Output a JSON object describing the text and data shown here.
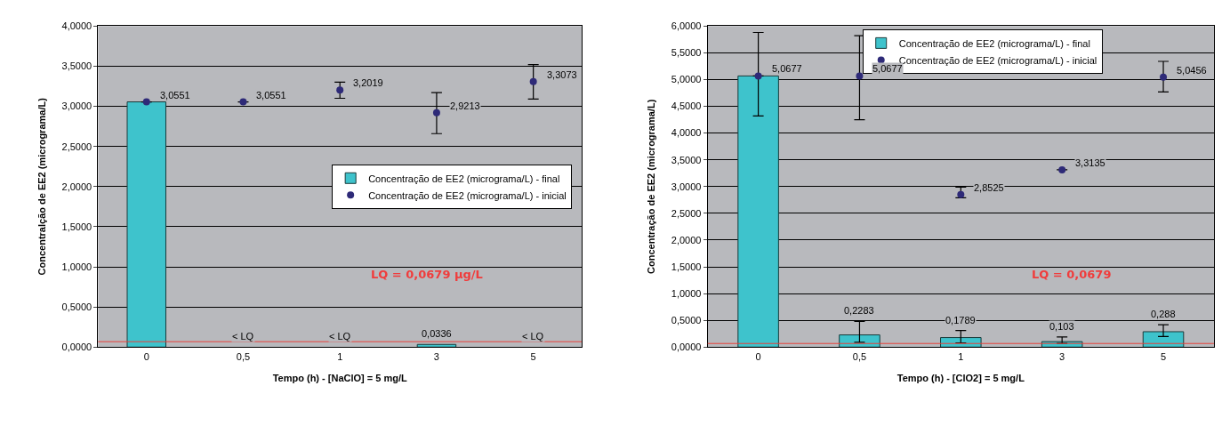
{
  "chart_data": [
    {
      "type": "bar",
      "xlabel": "Tempo (h) - [NaClO] = 5 mg/L",
      "ylabel": "Concentralção de EE2 (micrograma/L)",
      "categories": [
        "0",
        "0,5",
        "1",
        "3",
        "5"
      ],
      "series": [
        {
          "name": "Concentração de EE2 (micrograma/L) - final",
          "color": "#3ec3cc",
          "values": [
            3.0551,
            null,
            null,
            0.0336,
            null
          ],
          "value_labels": [
            null,
            "< LQ",
            "< LQ",
            "0,0336",
            "< LQ"
          ]
        },
        {
          "name": "Concentração de EE2 (micrograma/L) - inicial",
          "type": "scatter",
          "color": "#2e2a78",
          "marker": "circle",
          "values": [
            3.0551,
            3.0551,
            3.2019,
            2.9213,
            3.3073
          ],
          "value_labels": [
            "3,0551",
            "3,0551",
            "3,2019",
            "2,9213",
            "3,3073"
          ],
          "errors": [
            null,
            null,
            [
              3.1,
              3.3
            ],
            [
              2.66,
              3.17
            ],
            [
              3.09,
              3.52
            ]
          ]
        }
      ],
      "ylim": [
        0,
        4
      ],
      "yticks": [
        {
          "value": 0,
          "label": "0,0000"
        },
        {
          "value": 0.5,
          "label": "0,5000"
        },
        {
          "value": 1,
          "label": "1,0000"
        },
        {
          "value": 1.5,
          "label": "1,5000"
        },
        {
          "value": 2,
          "label": "2,0000"
        },
        {
          "value": 2.5,
          "label": "2,5000"
        },
        {
          "value": 3,
          "label": "3,0000"
        },
        {
          "value": 3.5,
          "label": "3,5000"
        },
        {
          "value": 4,
          "label": "4,0000"
        }
      ],
      "ref_lines": [
        {
          "axis": "y",
          "value": 0.0679,
          "color": "#e8403a"
        }
      ],
      "annotations": [
        "LQ = 0,0679 µg/L"
      ],
      "grid": "y",
      "legend": "right"
    },
    {
      "type": "bar",
      "xlabel": "Tempo (h) - [ClO2] = 5 mg/L",
      "ylabel": "Concentração de EE2 (micrograma/L)",
      "categories": [
        "0",
        "0,5",
        "1",
        "3",
        "5"
      ],
      "series": [
        {
          "name": "Concentração de EE2 (micrograma/L) - final",
          "color": "#3ec3cc",
          "values": [
            5.0677,
            0.2283,
            0.1789,
            0.103,
            0.288
          ],
          "value_labels": [
            null,
            "0,2283",
            "0,1789",
            "0,103",
            "0,288"
          ],
          "errors": [
            [
              4.32,
              5.88
            ],
            [
              0.09,
              0.48
            ],
            [
              0.08,
              0.31
            ],
            [
              0.07,
              0.19
            ],
            [
              0.2,
              0.42
            ]
          ]
        },
        {
          "name": "Concentração de EE2 (micrograma/L) - inicial",
          "type": "scatter",
          "color": "#2e2a78",
          "marker": "circle",
          "values": [
            5.0677,
            5.0677,
            2.8525,
            3.3135,
            5.0456
          ],
          "value_labels": [
            "5,0677",
            "5,0677",
            "2,8525",
            "3,3135",
            "5,0456"
          ],
          "errors": [
            null,
            [
              4.25,
              5.82
            ],
            [
              2.79,
              2.99
            ],
            null,
            [
              4.77,
              5.34
            ]
          ]
        }
      ],
      "ylim": [
        0,
        6
      ],
      "yticks": [
        {
          "value": 0,
          "label": "0,0000"
        },
        {
          "value": 0.5,
          "label": "0,5000"
        },
        {
          "value": 1,
          "label": "1,0000"
        },
        {
          "value": 1.5,
          "label": "1,5000"
        },
        {
          "value": 2,
          "label": "2,0000"
        },
        {
          "value": 2.5,
          "label": "2,5000"
        },
        {
          "value": 3,
          "label": "3,0000"
        },
        {
          "value": 3.5,
          "label": "3,5000"
        },
        {
          "value": 4,
          "label": "4,0000"
        },
        {
          "value": 4.5,
          "label": "4,5000"
        },
        {
          "value": 5,
          "label": "5,0000"
        },
        {
          "value": 5.5,
          "label": "5,5000"
        },
        {
          "value": 6,
          "label": "6,0000"
        }
      ],
      "ref_lines": [
        {
          "axis": "y",
          "value": 0.0679,
          "color": "#e8403a"
        }
      ],
      "annotations": [
        "LQ = 0,0679"
      ],
      "grid": "y",
      "legend": "top right"
    }
  ]
}
